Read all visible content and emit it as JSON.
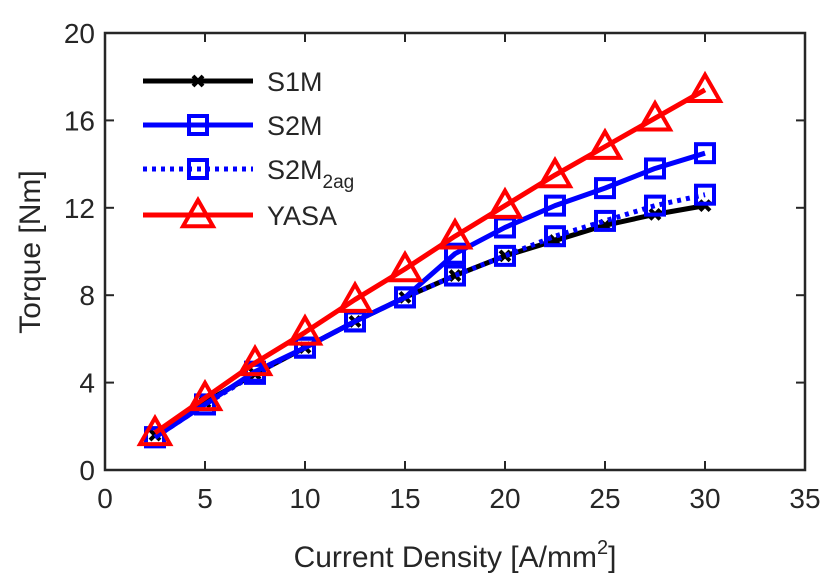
{
  "chart_data": {
    "type": "line",
    "title": "",
    "xlabel": "Current Density [A/mm",
    "xlabel_sup": "2",
    "xlabel_end": "]",
    "ylabel": "Torque [Nm]",
    "xlim": [
      0,
      35
    ],
    "ylim": [
      0,
      20
    ],
    "xticks": [
      0,
      5,
      10,
      15,
      20,
      25,
      30,
      35
    ],
    "yticks": [
      0,
      4,
      8,
      12,
      16,
      20
    ],
    "grid": false,
    "legend_position": "top-left",
    "x": [
      2.5,
      5,
      7.5,
      10,
      12.5,
      15,
      17.5,
      20,
      22.5,
      25,
      27.5,
      30
    ],
    "series": [
      {
        "name": "S1M",
        "label_main": "S1M",
        "label_sub": "",
        "color": "#000000",
        "marker": "x-marker",
        "line_style": "solid",
        "values": [
          1.6,
          3.1,
          4.4,
          5.6,
          6.8,
          7.9,
          8.9,
          9.8,
          10.5,
          11.2,
          11.7,
          12.1
        ]
      },
      {
        "name": "S2M",
        "label_main": "S2M",
        "label_sub": "",
        "color": "#0000ff",
        "marker": "square-marker",
        "line_style": "solid",
        "values": [
          1.5,
          3.0,
          4.5,
          5.6,
          6.8,
          7.9,
          9.9,
          11.1,
          12.1,
          12.9,
          13.8,
          14.5
        ]
      },
      {
        "name": "S2M2ag",
        "label_main": "S2M",
        "label_sub": "2ag",
        "color": "#0000ff",
        "marker": "square-marker",
        "line_style": "dotted",
        "values": [
          1.5,
          3.0,
          4.4,
          5.6,
          6.8,
          7.9,
          8.9,
          9.8,
          10.7,
          11.4,
          12.1,
          12.6
        ]
      },
      {
        "name": "YASA",
        "label_main": "YASA",
        "label_sub": "",
        "color": "#ff0000",
        "marker": "triangle-marker",
        "line_style": "solid",
        "values": [
          1.7,
          3.3,
          4.9,
          6.3,
          7.8,
          9.2,
          10.7,
          12.1,
          13.5,
          14.8,
          16.1,
          17.4
        ]
      }
    ]
  }
}
